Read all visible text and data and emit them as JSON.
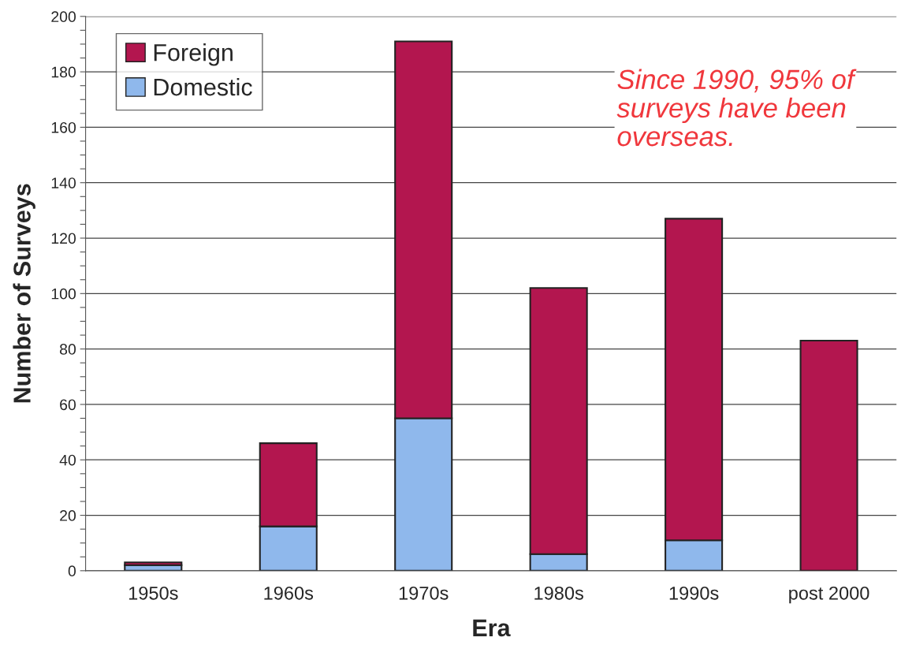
{
  "chart_data": {
    "type": "bar",
    "stacked": true,
    "xlabel": "Era",
    "ylabel": "Number of Surveys",
    "categories": [
      "1950s",
      "1960s",
      "1970s",
      "1980s",
      "1990s",
      "post 2000"
    ],
    "series": [
      {
        "name": "Domestic",
        "color": "#8fb8ec",
        "values": [
          2,
          16,
          55,
          6,
          11,
          0
        ]
      },
      {
        "name": "Foreign",
        "color": "#b3164f",
        "values": [
          1,
          30,
          136,
          96,
          116,
          83
        ]
      }
    ],
    "ylim": [
      0,
      200
    ],
    "yticks": [
      0,
      {
        "value": 5,
        "label": null
      },
      {
        "value": 10,
        "label": null
      },
      {
        "value": 15,
        "label": null
      },
      20,
      {
        "value": 25,
        "label": null
      },
      {
        "value": 30,
        "label": null
      },
      {
        "value": 35,
        "label": null
      },
      40,
      {
        "value": 45,
        "label": null
      },
      {
        "value": 50,
        "label": null
      },
      {
        "value": 55,
        "label": null
      },
      60,
      {
        "value": 65,
        "label": null
      },
      {
        "value": 70,
        "label": null
      },
      {
        "value": 75,
        "label": null
      },
      80,
      {
        "value": 85,
        "label": null
      },
      {
        "value": 90,
        "label": null
      },
      {
        "value": 95,
        "label": null
      },
      100,
      {
        "value": 105,
        "label": null
      },
      {
        "value": 110,
        "label": null
      },
      {
        "value": 115,
        "label": null
      },
      120,
      {
        "value": 125,
        "label": null
      },
      {
        "value": 130,
        "label": null
      },
      {
        "value": 135,
        "label": null
      },
      140,
      {
        "value": 145,
        "label": null
      },
      {
        "value": 150,
        "label": null
      },
      {
        "value": 155,
        "label": null
      },
      160,
      {
        "value": 165,
        "label": null
      },
      {
        "value": 170,
        "label": null
      },
      {
        "value": 175,
        "label": null
      },
      180,
      {
        "value": 185,
        "label": null
      },
      {
        "value": 190,
        "label": null
      },
      {
        "value": 195,
        "label": null
      },
      200
    ],
    "grid": "y",
    "legend": "top left",
    "annotations": [
      "Since 1990, 95% of\nsurveys have been\noverseas."
    ]
  }
}
